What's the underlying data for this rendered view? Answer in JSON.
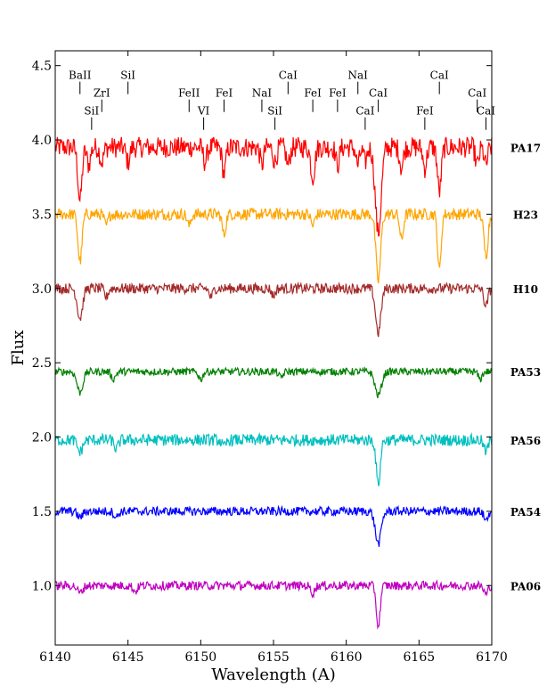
{
  "chart_data": {
    "type": "line",
    "title": "",
    "xlabel": "Wavelength (A)",
    "ylabel": "Flux",
    "xlim": [
      6140,
      6170
    ],
    "ylim": [
      0.6,
      4.6
    ],
    "xticks": [
      6140,
      6145,
      6150,
      6155,
      6160,
      6165,
      6170
    ],
    "yticks": [
      1.0,
      1.5,
      2.0,
      2.5,
      3.0,
      3.5,
      4.0,
      4.5
    ],
    "xtick_labels": [
      "6140",
      "6145",
      "6150",
      "6155",
      "6160",
      "6165",
      "6170"
    ],
    "ytick_labels": [
      "1.0",
      "1.5",
      "2.0",
      "2.5",
      "3.0",
      "3.5",
      "4.0",
      "4.5"
    ],
    "grid": false,
    "line_markers": [
      {
        "label": "BaII",
        "x": 6141.7,
        "y": 4.38,
        "level": "top"
      },
      {
        "label": "ZrI",
        "x": 6143.2,
        "y": 4.26,
        "level": "middle"
      },
      {
        "label": "SiI",
        "x": 6142.5,
        "y": 4.14,
        "level": "bottom"
      },
      {
        "label": "SiI",
        "x": 6145.0,
        "y": 4.38,
        "level": "top"
      },
      {
        "label": "FeII",
        "x": 6149.2,
        "y": 4.26,
        "level": "middle"
      },
      {
        "label": "VI",
        "x": 6150.2,
        "y": 4.14,
        "level": "bottom"
      },
      {
        "label": "FeI",
        "x": 6151.6,
        "y": 4.26,
        "level": "middle"
      },
      {
        "label": "NaI",
        "x": 6154.2,
        "y": 4.26,
        "level": "middle"
      },
      {
        "label": "SiI",
        "x": 6155.1,
        "y": 4.14,
        "level": "bottom"
      },
      {
        "label": "CaI",
        "x": 6156.0,
        "y": 4.38,
        "level": "top"
      },
      {
        "label": "FeI",
        "x": 6157.7,
        "y": 4.26,
        "level": "middle"
      },
      {
        "label": "FeI",
        "x": 6159.4,
        "y": 4.26,
        "level": "middle"
      },
      {
        "label": "NaI",
        "x": 6160.8,
        "y": 4.38,
        "level": "top"
      },
      {
        "label": "CaI",
        "x": 6161.3,
        "y": 4.14,
        "level": "bottom"
      },
      {
        "label": "CaI",
        "x": 6162.2,
        "y": 4.26,
        "level": "middle"
      },
      {
        "label": "FeI",
        "x": 6165.4,
        "y": 4.14,
        "level": "bottom"
      },
      {
        "label": "CaI",
        "x": 6166.4,
        "y": 4.38,
        "level": "top"
      },
      {
        "label": "CaI",
        "x": 6169.0,
        "y": 4.26,
        "level": "middle"
      },
      {
        "label": "CaI",
        "x": 6169.6,
        "y": 4.14,
        "level": "bottom"
      }
    ],
    "series": [
      {
        "name": "PA17",
        "color": "#ff0000",
        "continuum": 3.95,
        "noise": 0.07,
        "lines": [
          {
            "x": 6141.7,
            "depth": 0.36,
            "width": 0.14
          },
          {
            "x": 6142.3,
            "depth": 0.12,
            "width": 0.12
          },
          {
            "x": 6143.2,
            "depth": 0.1,
            "width": 0.12
          },
          {
            "x": 6145.0,
            "depth": 0.1,
            "width": 0.12
          },
          {
            "x": 6150.3,
            "depth": 0.1,
            "width": 0.12
          },
          {
            "x": 6151.6,
            "depth": 0.18,
            "width": 0.12
          },
          {
            "x": 6154.2,
            "depth": 0.12,
            "width": 0.12
          },
          {
            "x": 6155.1,
            "depth": 0.1,
            "width": 0.12
          },
          {
            "x": 6156.0,
            "depth": 0.12,
            "width": 0.12
          },
          {
            "x": 6157.7,
            "depth": 0.2,
            "width": 0.14
          },
          {
            "x": 6159.4,
            "depth": 0.12,
            "width": 0.12
          },
          {
            "x": 6160.8,
            "depth": 0.12,
            "width": 0.12
          },
          {
            "x": 6161.3,
            "depth": 0.1,
            "width": 0.12
          },
          {
            "x": 6162.2,
            "depth": 0.58,
            "width": 0.2
          },
          {
            "x": 6163.8,
            "depth": 0.14,
            "width": 0.12
          },
          {
            "x": 6165.4,
            "depth": 0.14,
            "width": 0.12
          },
          {
            "x": 6166.4,
            "depth": 0.3,
            "width": 0.13
          },
          {
            "x": 6169.0,
            "depth": 0.12,
            "width": 0.12
          },
          {
            "x": 6169.6,
            "depth": 0.12,
            "width": 0.12
          }
        ]
      },
      {
        "name": "H23",
        "color": "#ffa500",
        "continuum": 3.5,
        "noise": 0.04,
        "lines": [
          {
            "x": 6141.7,
            "depth": 0.32,
            "width": 0.14
          },
          {
            "x": 6143.5,
            "depth": 0.08,
            "width": 0.12
          },
          {
            "x": 6149.2,
            "depth": 0.08,
            "width": 0.12
          },
          {
            "x": 6151.6,
            "depth": 0.14,
            "width": 0.12
          },
          {
            "x": 6157.7,
            "depth": 0.08,
            "width": 0.12
          },
          {
            "x": 6162.2,
            "depth": 0.45,
            "width": 0.16
          },
          {
            "x": 6163.8,
            "depth": 0.18,
            "width": 0.12
          },
          {
            "x": 6166.4,
            "depth": 0.38,
            "width": 0.12
          },
          {
            "x": 6169.6,
            "depth": 0.28,
            "width": 0.14
          }
        ]
      },
      {
        "name": "H10",
        "color": "#a52a2a",
        "continuum": 3.0,
        "noise": 0.035,
        "lines": [
          {
            "x": 6141.7,
            "depth": 0.2,
            "width": 0.18
          },
          {
            "x": 6143.5,
            "depth": 0.06,
            "width": 0.12
          },
          {
            "x": 6150.7,
            "depth": 0.06,
            "width": 0.12
          },
          {
            "x": 6155.0,
            "depth": 0.05,
            "width": 0.12
          },
          {
            "x": 6162.2,
            "depth": 0.3,
            "width": 0.18
          },
          {
            "x": 6169.6,
            "depth": 0.12,
            "width": 0.14
          }
        ]
      },
      {
        "name": "PA53",
        "color": "#008000",
        "continuum": 2.44,
        "noise": 0.025,
        "lines": [
          {
            "x": 6141.7,
            "depth": 0.14,
            "width": 0.2
          },
          {
            "x": 6144.0,
            "depth": 0.05,
            "width": 0.14
          },
          {
            "x": 6150.0,
            "depth": 0.05,
            "width": 0.14
          },
          {
            "x": 6155.5,
            "depth": 0.04,
            "width": 0.14
          },
          {
            "x": 6162.2,
            "depth": 0.16,
            "width": 0.22
          },
          {
            "x": 6169.2,
            "depth": 0.05,
            "width": 0.14
          }
        ]
      },
      {
        "name": "PA56",
        "color": "#00bfbf",
        "continuum": 1.98,
        "noise": 0.04,
        "lines": [
          {
            "x": 6141.7,
            "depth": 0.08,
            "width": 0.18
          },
          {
            "x": 6144.2,
            "depth": 0.06,
            "width": 0.14
          },
          {
            "x": 6151.6,
            "depth": 0.05,
            "width": 0.14
          },
          {
            "x": 6162.2,
            "depth": 0.3,
            "width": 0.14
          },
          {
            "x": 6169.6,
            "depth": 0.08,
            "width": 0.14
          }
        ]
      },
      {
        "name": "PA54",
        "color": "#0000ff",
        "continuum": 1.5,
        "noise": 0.03,
        "lines": [
          {
            "x": 6141.7,
            "depth": 0.04,
            "width": 0.18
          },
          {
            "x": 6144.2,
            "depth": 0.04,
            "width": 0.14
          },
          {
            "x": 6162.2,
            "depth": 0.22,
            "width": 0.2
          },
          {
            "x": 6169.6,
            "depth": 0.06,
            "width": 0.14
          }
        ]
      },
      {
        "name": "PA06",
        "color": "#bf00bf",
        "continuum": 1.0,
        "noise": 0.03,
        "lines": [
          {
            "x": 6141.7,
            "depth": 0.05,
            "width": 0.18
          },
          {
            "x": 6145.5,
            "depth": 0.04,
            "width": 0.14
          },
          {
            "x": 6157.7,
            "depth": 0.05,
            "width": 0.14
          },
          {
            "x": 6162.2,
            "depth": 0.28,
            "width": 0.13
          },
          {
            "x": 6169.6,
            "depth": 0.06,
            "width": 0.14
          }
        ]
      }
    ]
  }
}
